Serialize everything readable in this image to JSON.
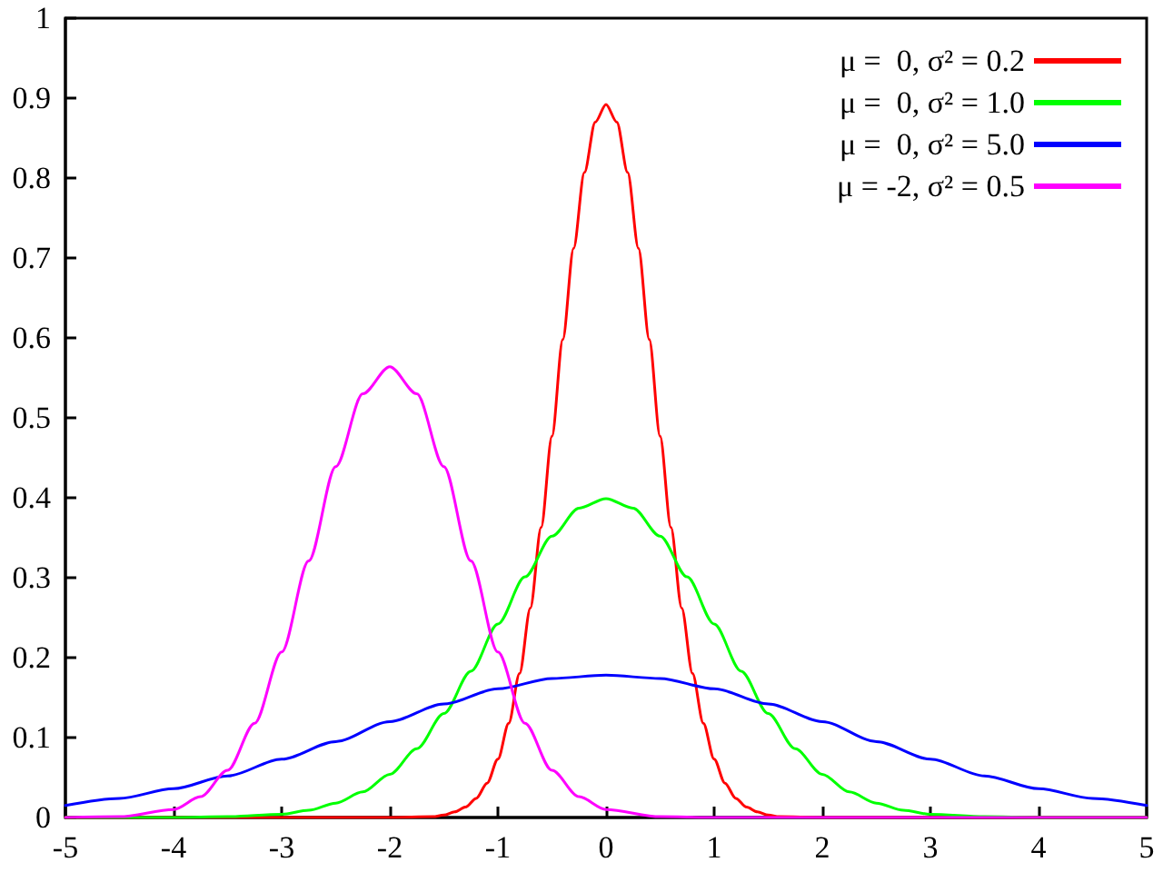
{
  "chart_data": {
    "type": "line",
    "xlim": [
      -5,
      5
    ],
    "xticks": [
      -5,
      -4,
      -3,
      -2,
      -1,
      0,
      1,
      2,
      3,
      4,
      5
    ],
    "ylim": [
      0,
      1
    ],
    "yticks": [
      0,
      0.1,
      0.2,
      0.3,
      0.4,
      0.5,
      0.6,
      0.7,
      0.8,
      0.9,
      1
    ],
    "grid": false,
    "legend": "top right",
    "marker": "none",
    "line_style": "solid",
    "series": [
      {
        "name": "μ =  0, σ² = 0.2",
        "color": "#ff0000",
        "x": [
          -5,
          -2,
          -1.6,
          -1.5,
          -1.4,
          -1.3,
          -1.2,
          -1.1,
          -1,
          -0.9,
          -0.8,
          -0.7,
          -0.6,
          -0.5,
          -0.4,
          -0.3,
          -0.2,
          -0.1,
          0,
          0.1,
          0.2,
          0.3,
          0.4,
          0.5,
          0.6,
          0.7,
          0.8,
          0.9,
          1,
          1.1,
          1.2,
          1.3,
          1.4,
          1.5,
          1.6,
          2,
          5
        ],
        "values": [
          0,
          0,
          0.001,
          0.003,
          0.007,
          0.013,
          0.024,
          0.043,
          0.073,
          0.118,
          0.18,
          0.262,
          0.363,
          0.477,
          0.598,
          0.712,
          0.807,
          0.87,
          0.892,
          0.87,
          0.807,
          0.712,
          0.598,
          0.477,
          0.363,
          0.262,
          0.18,
          0.118,
          0.073,
          0.043,
          0.024,
          0.013,
          0.007,
          0.003,
          0.001,
          0,
          0
        ]
      },
      {
        "name": "μ =  0, σ² = 1.0",
        "color": "#00ff00",
        "x": [
          -5,
          -4,
          -3.5,
          -3,
          -2.75,
          -2.5,
          -2.25,
          -2,
          -1.75,
          -1.5,
          -1.25,
          -1,
          -0.75,
          -0.5,
          -0.25,
          0,
          0.25,
          0.5,
          0.75,
          1,
          1.25,
          1.5,
          1.75,
          2,
          2.25,
          2.5,
          2.75,
          3,
          3.5,
          4,
          5
        ],
        "values": [
          0,
          0,
          0.001,
          0.004,
          0.009,
          0.018,
          0.032,
          0.054,
          0.086,
          0.13,
          0.183,
          0.242,
          0.301,
          0.352,
          0.387,
          0.399,
          0.387,
          0.352,
          0.301,
          0.242,
          0.183,
          0.13,
          0.086,
          0.054,
          0.032,
          0.018,
          0.009,
          0.004,
          0.001,
          0,
          0
        ]
      },
      {
        "name": "μ =  0, σ² = 5.0",
        "color": "#0000ff",
        "x": [
          -5,
          -4.5,
          -4,
          -3.5,
          -3,
          -2.5,
          -2,
          -1.5,
          -1,
          -0.5,
          0,
          0.5,
          1,
          1.5,
          2,
          2.5,
          3,
          3.5,
          4,
          4.5,
          5
        ],
        "values": [
          0.015,
          0.024,
          0.036,
          0.052,
          0.073,
          0.095,
          0.12,
          0.142,
          0.161,
          0.174,
          0.178,
          0.174,
          0.161,
          0.142,
          0.12,
          0.095,
          0.073,
          0.052,
          0.036,
          0.024,
          0.015
        ]
      },
      {
        "name": "μ = -2, σ² = 0.5",
        "color": "#ff00ff",
        "x": [
          -5,
          -4.5,
          -4,
          -3.75,
          -3.5,
          -3.25,
          -3,
          -2.75,
          -2.5,
          -2.25,
          -2,
          -1.75,
          -1.5,
          -1.25,
          -1,
          -0.75,
          -0.5,
          -0.25,
          0,
          0.5,
          1,
          5
        ],
        "values": [
          0,
          0.001,
          0.01,
          0.026,
          0.059,
          0.118,
          0.207,
          0.321,
          0.439,
          0.53,
          0.564,
          0.53,
          0.439,
          0.321,
          0.207,
          0.118,
          0.059,
          0.026,
          0.01,
          0.001,
          0,
          0
        ]
      }
    ]
  }
}
